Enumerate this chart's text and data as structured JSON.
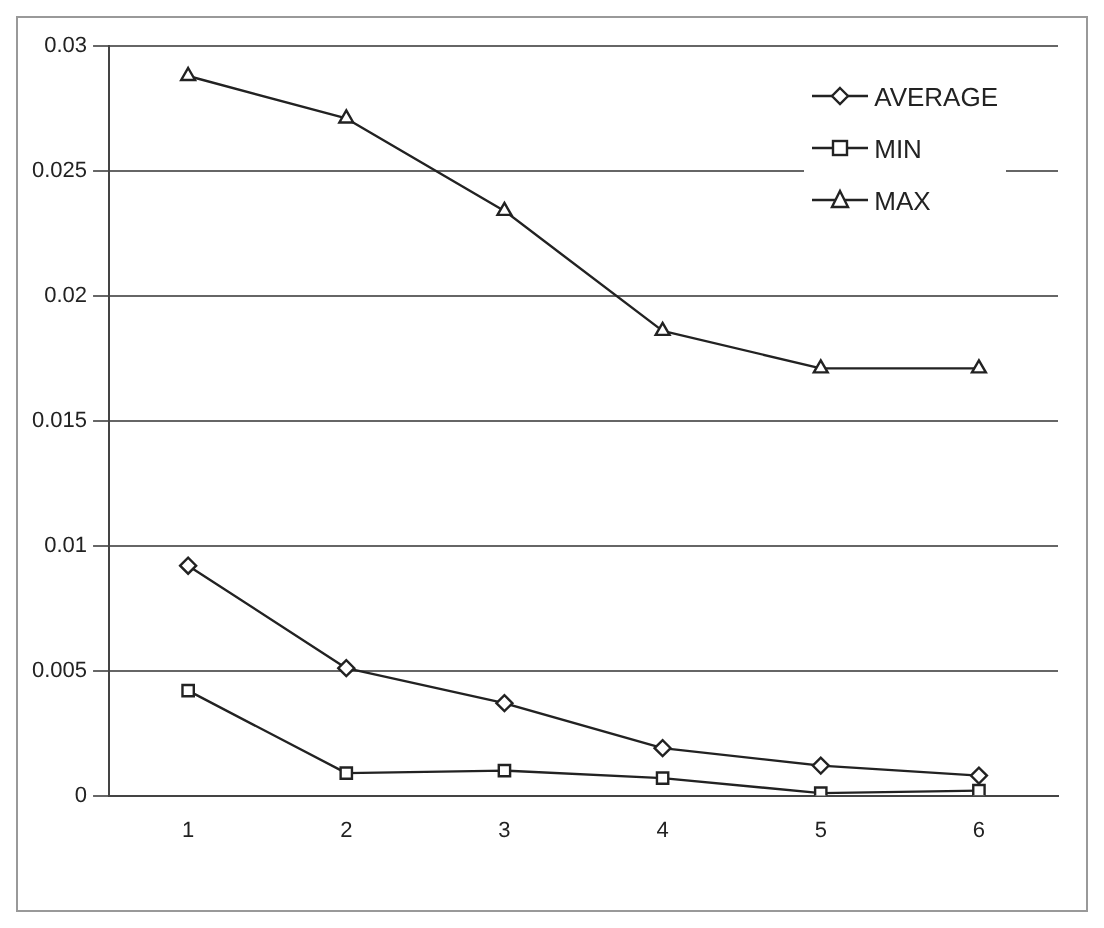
{
  "chart_data": {
    "type": "line",
    "categories": [
      "1",
      "2",
      "3",
      "4",
      "5",
      "6"
    ],
    "series": [
      {
        "name": "AVERAGE",
        "color": "#222222",
        "marker": "diamond",
        "values": [
          0.0092,
          0.0051,
          0.0037,
          0.0019,
          0.0012,
          0.0008
        ]
      },
      {
        "name": "MIN",
        "color": "#222222",
        "marker": "square",
        "values": [
          0.0042,
          0.0009,
          0.001,
          0.0007,
          0.0001,
          0.0002
        ]
      },
      {
        "name": "MAX",
        "color": "#222222",
        "marker": "triangle",
        "values": [
          0.0288,
          0.0271,
          0.0234,
          0.0186,
          0.0171,
          0.0171
        ]
      }
    ],
    "ylim": [
      0,
      0.03
    ],
    "yticks": [
      0,
      0.005,
      0.01,
      0.015,
      0.02,
      0.025,
      0.03
    ],
    "grid": "y",
    "legend": "top right"
  }
}
